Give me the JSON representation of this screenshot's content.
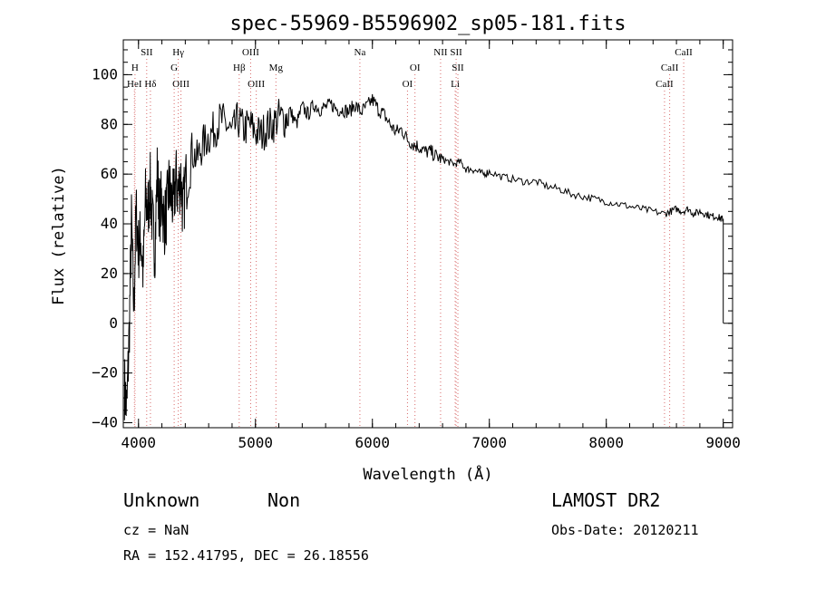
{
  "chart_data": {
    "type": "line",
    "title": "spec-55969-B5596902_sp05-181.fits",
    "xlabel": "Wavelength (Å)",
    "ylabel": "Flux (relative)",
    "xlim": [
      3870,
      9080
    ],
    "ylim": [
      -42,
      114
    ],
    "x_ticks": [
      4000,
      5000,
      6000,
      7000,
      8000,
      9000
    ],
    "y_ticks": [
      -40,
      -20,
      0,
      20,
      40,
      60,
      80,
      100
    ],
    "grid": false,
    "legend": "none",
    "series": [
      {
        "x": [
          3880,
          3900,
          3920,
          3940,
          3960,
          3980,
          4000,
          4020,
          4040,
          4060,
          4080,
          4100,
          4120,
          4140,
          4160,
          4180,
          4200,
          4220,
          4240,
          4260,
          4280,
          4300,
          4320,
          4340,
          4360,
          4380,
          4400,
          4450,
          4500,
          4550,
          4600,
          4650,
          4700,
          4750,
          4800,
          4850,
          4900,
          4950,
          5000,
          5050,
          5100,
          5150,
          5200,
          5250,
          5300,
          5350,
          5400,
          5450,
          5500,
          5550,
          5600,
          5650,
          5700,
          5750,
          5800,
          5850,
          5900,
          5950,
          6000,
          6050,
          6100,
          6150,
          6200,
          6250,
          6300,
          6350,
          6400,
          6450,
          6500,
          6550,
          6600,
          6650,
          6700,
          6750,
          6800,
          6850,
          6900,
          6950,
          7000,
          7100,
          7200,
          7300,
          7400,
          7500,
          7600,
          7700,
          7800,
          7900,
          8000,
          8100,
          8200,
          8300,
          8400,
          8500,
          8550,
          8600,
          8650,
          8700,
          8750,
          8800,
          8850,
          8900,
          8950,
          8980,
          9000
        ],
        "y": [
          -25,
          -35,
          -5,
          40,
          5,
          45,
          30,
          35,
          20,
          50,
          45,
          55,
          40,
          30,
          60,
          45,
          50,
          40,
          45,
          55,
          50,
          48,
          58,
          52,
          60,
          45,
          55,
          70,
          66,
          72,
          75,
          78,
          82,
          80,
          76,
          82,
          78,
          80,
          77,
          76,
          79,
          80,
          83,
          82,
          85,
          80,
          87,
          84,
          88,
          86,
          87,
          88,
          86,
          86,
          85,
          88,
          85,
          87,
          90,
          86,
          84,
          80,
          77,
          78,
          74,
          72,
          71,
          69,
          69,
          67,
          66,
          65,
          64,
          65,
          62,
          62,
          61,
          60,
          61,
          59,
          58,
          57,
          57,
          55,
          54,
          52,
          51,
          50,
          49,
          48,
          47,
          46,
          45,
          44,
          45,
          46,
          45,
          46,
          44,
          45,
          44,
          43,
          43,
          42,
          42
        ]
      }
    ],
    "line_markers": [
      {
        "label": "HeI",
        "x": 3965,
        "row": 3
      },
      {
        "label": "H",
        "x": 3970,
        "row": 2
      },
      {
        "label": "SII",
        "x": 4070,
        "row": 1
      },
      {
        "label": "Hδ",
        "x": 4102,
        "row": 3
      },
      {
        "label": "Hγ",
        "x": 4340,
        "row": 1
      },
      {
        "label": "G",
        "x": 4305,
        "row": 2
      },
      {
        "label": "OIII",
        "x": 4363,
        "row": 3
      },
      {
        "label": "OIII",
        "x": 4959,
        "row": 1
      },
      {
        "label": "Hβ",
        "x": 4861,
        "row": 2
      },
      {
        "label": "OIII",
        "x": 5007,
        "row": 3
      },
      {
        "label": "Mg",
        "x": 5175,
        "row": 2
      },
      {
        "label": "Na",
        "x": 5893,
        "row": 1
      },
      {
        "label": "OI",
        "x": 6364,
        "row": 2
      },
      {
        "label": "OI",
        "x": 6300,
        "row": 3
      },
      {
        "label": "NII",
        "x": 6583,
        "row": 1
      },
      {
        "label": "SII",
        "x": 6716,
        "row": 1
      },
      {
        "label": "SII",
        "x": 6731,
        "row": 2
      },
      {
        "label": "Li",
        "x": 6708,
        "row": 3
      },
      {
        "label": "CaII",
        "x": 8662,
        "row": 1
      },
      {
        "label": "CaII",
        "x": 8542,
        "row": 2
      },
      {
        "label": "CaII",
        "x": 8498,
        "row": 3
      }
    ]
  },
  "info": {
    "object_class": "Unknown",
    "subclass": "Non",
    "survey": "LAMOST DR2",
    "cz": "cz = NaN",
    "obs_date": "Obs-Date: 20120211",
    "coords": "RA = 152.41795, DEC =  26.18556"
  },
  "colors": {
    "spectrum": "#000000",
    "marker_line": "#d86a6a",
    "axis": "#000000"
  }
}
